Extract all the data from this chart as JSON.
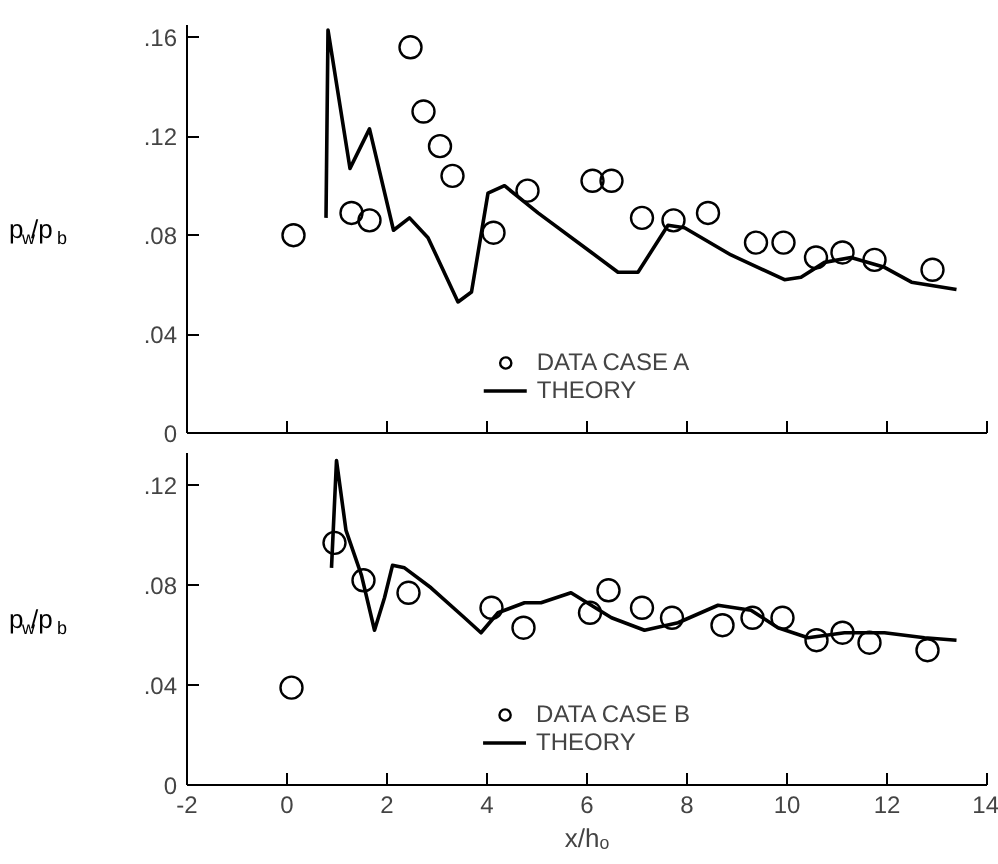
{
  "chart_data": [
    {
      "type": "scatter",
      "ylabel": "p$_{w}$/p$_{b}$",
      "xlim": [
        -2,
        14
      ],
      "xticks": [
        -2,
        0,
        2,
        4,
        6,
        8,
        10,
        12,
        14
      ],
      "ylim": [
        0,
        0.165
      ],
      "yticks": [
        {
          "value": 0,
          "label": "0"
        },
        {
          "value": 0.04,
          "label": ".04"
        },
        {
          "value": 0.08,
          "label": ".08"
        },
        {
          "value": 0.12,
          "label": ".12"
        },
        {
          "value": 0.16,
          "label": ".16"
        }
      ],
      "tick_labels": "y",
      "grid": false,
      "legend": "bottom",
      "series": [
        {
          "name": "DATA CASE A",
          "marker": "circle",
          "color": "#000000",
          "x": [
            0.13,
            1.29,
            1.65,
            2.47,
            2.73,
            3.06,
            3.31,
            4.13,
            4.81,
            6.11,
            6.49,
            7.1,
            7.73,
            8.42,
            9.38,
            9.93,
            10.58,
            11.11,
            11.75,
            12.91
          ],
          "values": [
            0.08,
            0.089,
            0.086,
            0.156,
            0.13,
            0.116,
            0.104,
            0.081,
            0.098,
            0.102,
            0.102,
            0.087,
            0.086,
            0.089,
            0.077,
            0.077,
            0.071,
            0.073,
            0.07,
            0.066
          ]
        },
        {
          "name": "THEORY",
          "type": "line",
          "line_style": "solid",
          "color": "#000000",
          "x": [
            0.78,
            0.82,
            1.26,
            1.65,
            2.13,
            2.45,
            2.82,
            3.42,
            3.69,
            4.02,
            4.35,
            5.02,
            6.09,
            6.62,
            7.02,
            7.62,
            7.95,
            8.88,
            9.95,
            10.28,
            10.75,
            11.28,
            11.95,
            12.49,
            13.39
          ],
          "values": [
            0.087,
            0.163,
            0.107,
            0.123,
            0.082,
            0.087,
            0.079,
            0.053,
            0.057,
            0.097,
            0.1,
            0.089,
            0.073,
            0.065,
            0.065,
            0.084,
            0.083,
            0.072,
            0.062,
            0.063,
            0.069,
            0.071,
            0.067,
            0.061,
            0.058
          ]
        }
      ]
    },
    {
      "type": "scatter",
      "xlabel": "x/hₒ",
      "ylabel": "p$_{w}$/p$_{b}$",
      "xlim": [
        -2,
        14
      ],
      "xticks": [
        -2,
        0,
        2,
        4,
        6,
        8,
        10,
        12,
        14
      ],
      "ylim": [
        0,
        0.133
      ],
      "yticks": [
        {
          "value": 0,
          "label": "0"
        },
        {
          "value": 0.04,
          "label": ".04"
        },
        {
          "value": 0.08,
          "label": ".08"
        },
        {
          "value": 0.12,
          "label": ".12"
        }
      ],
      "grid": false,
      "legend": "bottom",
      "series": [
        {
          "name": "DATA CASE B",
          "marker": "circle",
          "color": "#000000",
          "x": [
            0.09,
            0.95,
            1.53,
            2.43,
            4.09,
            4.73,
            6.06,
            6.43,
            7.1,
            7.7,
            8.71,
            9.31,
            9.91,
            10.59,
            11.11,
            11.65,
            12.81
          ],
          "values": [
            0.039,
            0.097,
            0.082,
            0.077,
            0.071,
            0.063,
            0.069,
            0.078,
            0.071,
            0.067,
            0.064,
            0.067,
            0.067,
            0.058,
            0.061,
            0.057,
            0.054
          ]
        },
        {
          "name": "THEORY",
          "type": "line",
          "line_style": "solid",
          "color": "#000000",
          "x": [
            0.89,
            0.99,
            1.18,
            1.49,
            1.75,
            1.95,
            2.11,
            2.35,
            2.88,
            3.55,
            3.88,
            4.22,
            4.75,
            5.08,
            5.68,
            6.49,
            7.15,
            7.82,
            8.62,
            9.28,
            9.82,
            10.42,
            11.15,
            11.95,
            12.75,
            13.39
          ],
          "values": [
            0.087,
            0.13,
            0.102,
            0.084,
            0.062,
            0.075,
            0.088,
            0.087,
            0.079,
            0.067,
            0.061,
            0.069,
            0.073,
            0.073,
            0.077,
            0.067,
            0.062,
            0.065,
            0.072,
            0.07,
            0.063,
            0.059,
            0.061,
            0.061,
            0.059,
            0.058
          ]
        }
      ]
    }
  ]
}
